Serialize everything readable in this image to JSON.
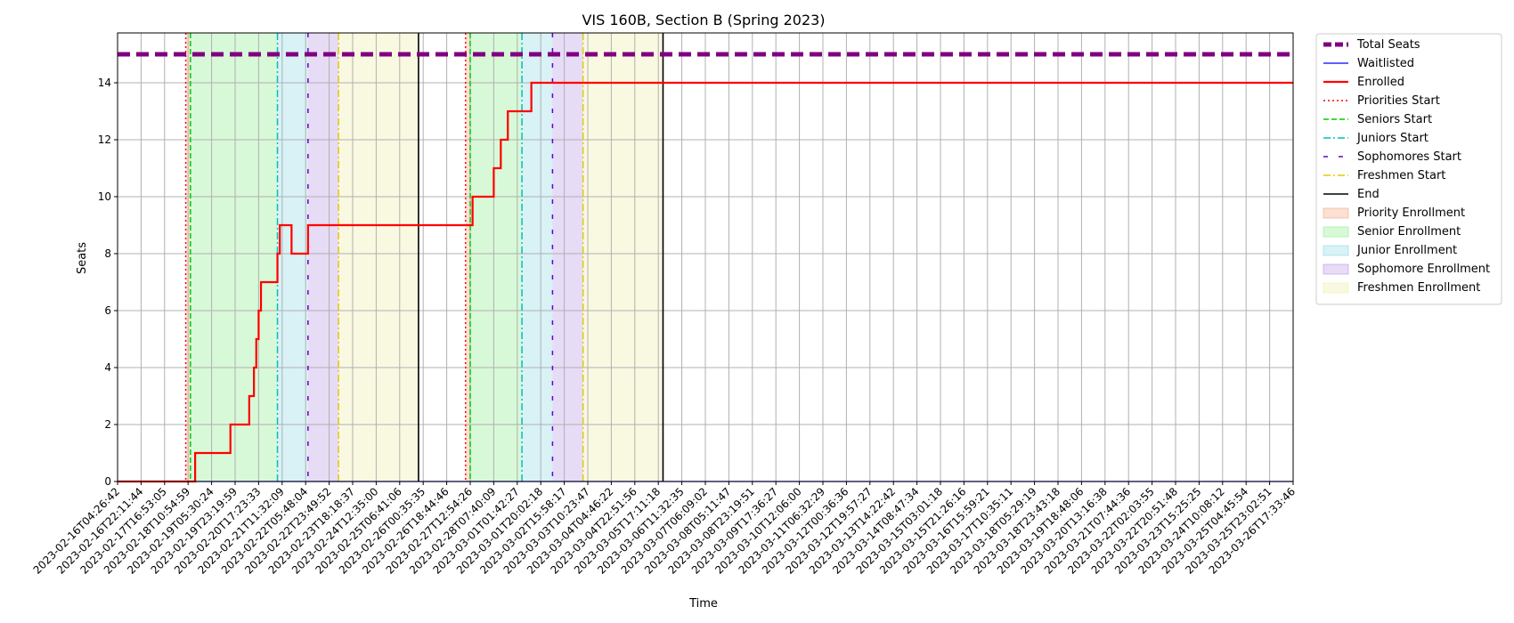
{
  "chart_data": {
    "type": "line",
    "title": "VIS 160B, Section B (Spring 2023)",
    "xlabel": "Time",
    "ylabel": "Seats",
    "ylim": [
      0,
      15.75
    ],
    "yticks": [
      0,
      2,
      4,
      6,
      8,
      10,
      12,
      14
    ],
    "legend_position": "outside-right",
    "grid": true,
    "x_ticks": [
      "2023-02-16T04:26:42",
      "2023-02-16T22:11:44",
      "2023-02-17T16:53:05",
      "2023-02-18T10:54:59",
      "2023-02-19T05:30:24",
      "2023-02-19T23:19:59",
      "2023-02-20T17:23:33",
      "2023-02-21T11:32:09",
      "2023-02-22T05:48:04",
      "2023-02-22T23:49:52",
      "2023-02-23T18:18:37",
      "2023-02-24T12:35:00",
      "2023-02-25T06:41:06",
      "2023-02-26T00:35:35",
      "2023-02-26T18:44:46",
      "2023-02-27T12:54:26",
      "2023-02-28T07:40:09",
      "2023-03-01T01:42:27",
      "2023-03-01T20:02:18",
      "2023-03-02T15:58:17",
      "2023-03-03T10:23:47",
      "2023-03-04T04:46:22",
      "2023-03-04T22:51:56",
      "2023-03-05T17:11:18",
      "2023-03-06T11:32:35",
      "2023-03-07T06:09:02",
      "2023-03-08T05:11:47",
      "2023-03-08T23:19:51",
      "2023-03-09T17:36:27",
      "2023-03-10T12:06:00",
      "2023-03-11T06:32:29",
      "2023-03-12T00:36:36",
      "2023-03-12T19:57:27",
      "2023-03-13T14:22:42",
      "2023-03-14T08:47:34",
      "2023-03-15T03:01:18",
      "2023-03-15T21:26:16",
      "2023-03-16T15:59:21",
      "2023-03-17T10:35:11",
      "2023-03-18T05:29:19",
      "2023-03-18T23:43:18",
      "2023-03-19T18:48:06",
      "2023-03-20T13:16:38",
      "2023-03-21T07:44:36",
      "2023-03-22T02:03:55",
      "2023-03-22T20:51:48",
      "2023-03-23T15:25:25",
      "2023-03-24T10:08:12",
      "2023-03-25T04:45:54",
      "2023-03-25T23:02:51",
      "2023-03-26T17:33:46"
    ],
    "series": [
      {
        "name": "Total Seats",
        "color": "#800080",
        "style": "dashed-thick",
        "points": [
          [
            0,
            15
          ],
          [
            50,
            15
          ]
        ]
      },
      {
        "name": "Waitlisted",
        "color": "#0000ff",
        "style": "solid-thin",
        "points": [
          [
            0,
            0
          ],
          [
            50,
            0
          ]
        ]
      },
      {
        "name": "Enrolled",
        "color": "#ff0000",
        "style": "step",
        "points": [
          [
            0,
            0
          ],
          [
            3.3,
            0
          ],
          [
            3.3,
            1
          ],
          [
            4.8,
            1
          ],
          [
            4.8,
            2
          ],
          [
            5.6,
            2
          ],
          [
            5.6,
            3
          ],
          [
            5.8,
            3
          ],
          [
            5.8,
            4
          ],
          [
            5.9,
            4
          ],
          [
            5.9,
            5
          ],
          [
            6.0,
            5
          ],
          [
            6.0,
            6
          ],
          [
            6.1,
            6
          ],
          [
            6.1,
            7
          ],
          [
            6.8,
            7
          ],
          [
            6.8,
            8
          ],
          [
            6.9,
            8
          ],
          [
            6.9,
            9
          ],
          [
            7.4,
            9
          ],
          [
            7.4,
            8
          ],
          [
            8.1,
            8
          ],
          [
            8.1,
            9
          ],
          [
            15.1,
            9
          ],
          [
            15.1,
            10
          ],
          [
            16.0,
            10
          ],
          [
            16.0,
            11
          ],
          [
            16.3,
            11
          ],
          [
            16.3,
            12
          ],
          [
            16.6,
            12
          ],
          [
            16.6,
            13
          ],
          [
            17.6,
            13
          ],
          [
            17.6,
            14
          ],
          [
            50,
            14
          ]
        ]
      }
    ],
    "markers": [
      {
        "name": "Priorities Start",
        "color": "#ff0000",
        "style": "dotted",
        "x": [
          2.9,
          14.8
        ]
      },
      {
        "name": "Seniors Start",
        "color": "#00cc00",
        "style": "dashed",
        "x": [
          3.1,
          15.0
        ]
      },
      {
        "name": "Juniors Start",
        "color": "#00bfbf",
        "style": "dashdot",
        "x": [
          6.8,
          17.2
        ]
      },
      {
        "name": "Sophomores Start",
        "color": "#6600cc",
        "style": "loosedash",
        "x": [
          8.1,
          18.5
        ]
      },
      {
        "name": "Freshmen Start",
        "color": "#e6c800",
        "style": "dashdot",
        "x": [
          9.4,
          19.8
        ]
      },
      {
        "name": "End",
        "color": "#000000",
        "style": "solid",
        "x": [
          12.8,
          23.2
        ]
      }
    ],
    "regions": [
      {
        "name": "Priority Enrollment",
        "color": "#f4a582",
        "spans": [
          [
            2.9,
            3.1
          ],
          [
            14.8,
            15.0
          ]
        ]
      },
      {
        "name": "Senior Enrollment",
        "color": "#90ee90",
        "spans": [
          [
            3.1,
            6.8
          ],
          [
            15.0,
            17.2
          ]
        ]
      },
      {
        "name": "Junior Enrollment",
        "color": "#8fd9e6",
        "spans": [
          [
            6.8,
            8.1
          ],
          [
            17.2,
            18.5
          ]
        ]
      },
      {
        "name": "Sophomore Enrollment",
        "color": "#b89ae6",
        "spans": [
          [
            8.1,
            9.4
          ],
          [
            18.5,
            19.8
          ]
        ]
      },
      {
        "name": "Freshmen Enrollment",
        "color": "#eeeeaa",
        "spans": [
          [
            9.4,
            12.8
          ],
          [
            19.8,
            23.2
          ]
        ]
      }
    ]
  }
}
